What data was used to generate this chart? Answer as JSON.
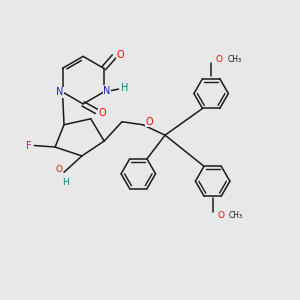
{
  "background_color": "#e8e8e8",
  "bond_color": "#1a1a1a",
  "color_O": "#ff0000",
  "color_N": "#2222bb",
  "color_F": "#cc00cc",
  "color_H": "#008080",
  "figsize": [
    3.0,
    3.0
  ],
  "dpi": 100,
  "xlim": [
    0,
    10
  ],
  "ylim": [
    0,
    10
  ]
}
